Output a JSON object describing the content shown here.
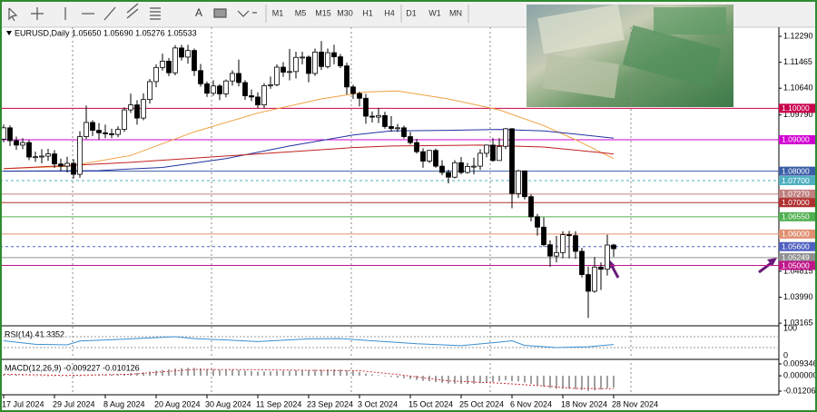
{
  "toolbar": {
    "text_tool": "A",
    "timeframes": [
      "M1",
      "M5",
      "M15",
      "M30",
      "H1",
      "H4",
      "D1",
      "W1",
      "MN"
    ]
  },
  "chart_data": {
    "type": "candlestick",
    "title": "EURUSD,Daily  1.05650 1.05690 1.05276 1.05533",
    "categories": [
      "17 Jul 2024",
      null,
      null,
      null,
      null,
      null,
      null,
      null,
      "29 Jul 2024",
      null,
      null,
      null,
      null,
      null,
      null,
      null,
      "8 Aug 2024",
      null,
      null,
      null,
      null,
      null,
      null,
      null,
      "20 Aug 2024",
      null,
      null,
      null,
      null,
      null,
      null,
      null,
      "30 Aug 2024",
      null,
      null,
      null,
      null,
      null,
      null,
      null,
      "11 Sep 2024",
      null,
      null,
      null,
      null,
      null,
      null,
      null,
      "23 Sep 2024",
      null,
      null,
      null,
      null,
      null,
      null,
      null,
      "3 Oct 2024",
      null,
      null,
      null,
      null,
      null,
      null,
      null,
      "15 Oct 2024",
      null,
      null,
      null,
      null,
      null,
      null,
      null,
      "25 Oct 2024",
      null,
      null,
      null,
      null,
      null,
      null,
      null,
      "6 Nov 2024",
      null,
      null,
      null,
      null,
      null,
      null,
      null,
      "18 Nov 2024",
      null,
      null,
      null,
      null,
      null,
      null,
      null,
      "28 Nov 2024"
    ],
    "ohlc": [
      [
        1.0902,
        1.0948,
        1.0892,
        1.0938
      ],
      [
        1.0938,
        1.0946,
        1.088,
        1.0897
      ],
      [
        1.0897,
        1.091,
        1.0868,
        1.0883
      ],
      [
        1.0883,
        1.0905,
        1.087,
        1.0891
      ],
      [
        1.0891,
        1.0899,
        1.0835,
        1.0845
      ],
      [
        1.0845,
        1.0862,
        1.083,
        1.0846
      ],
      [
        1.0846,
        1.087,
        1.0825,
        1.0848
      ],
      [
        1.0848,
        1.0871,
        1.0833,
        1.0855
      ],
      [
        1.0855,
        1.0867,
        1.0811,
        1.0823
      ],
      [
        1.0823,
        1.084,
        1.0801,
        1.0816
      ],
      [
        1.0816,
        1.0846,
        1.0796,
        1.0825
      ],
      [
        1.0825,
        1.0838,
        1.0777,
        1.079
      ],
      [
        1.079,
        1.0927,
        1.0779,
        1.091
      ],
      [
        1.091,
        1.1009,
        1.0902,
        1.0955
      ],
      [
        1.0955,
        1.0962,
        1.0912,
        1.093
      ],
      [
        1.093,
        1.0953,
        1.09,
        1.0922
      ],
      [
        1.0922,
        1.0948,
        1.0905,
        1.0919
      ],
      [
        1.0919,
        1.0935,
        1.0905,
        1.0917
      ],
      [
        1.0917,
        1.0943,
        1.0908,
        1.0933
      ],
      [
        1.0933,
        1.1003,
        1.0925,
        1.0995
      ],
      [
        1.0995,
        1.1047,
        1.0985,
        1.1011
      ],
      [
        1.1011,
        1.1026,
        1.0948,
        1.0969
      ],
      [
        1.0969,
        1.1048,
        1.0962,
        1.1028
      ],
      [
        1.1028,
        1.1093,
        1.1015,
        1.1085
      ],
      [
        1.1085,
        1.114,
        1.1067,
        1.113
      ],
      [
        1.113,
        1.1174,
        1.112,
        1.115
      ],
      [
        1.115,
        1.116,
        1.1102,
        1.1113
      ],
      [
        1.1113,
        1.1201,
        1.1105,
        1.1192
      ],
      [
        1.1192,
        1.1202,
        1.1152,
        1.1163
      ],
      [
        1.1163,
        1.1202,
        1.1142,
        1.1184
      ],
      [
        1.1184,
        1.119,
        1.1103,
        1.112
      ],
      [
        1.112,
        1.1141,
        1.1069,
        1.1078
      ],
      [
        1.1078,
        1.1085,
        1.1036,
        1.1048
      ],
      [
        1.1048,
        1.1089,
        1.104,
        1.1071
      ],
      [
        1.1071,
        1.1077,
        1.1026,
        1.1046
      ],
      [
        1.1046,
        1.1092,
        1.1035,
        1.1087
      ],
      [
        1.1087,
        1.1121,
        1.1072,
        1.1111
      ],
      [
        1.1111,
        1.1155,
        1.107,
        1.1082
      ],
      [
        1.1082,
        1.109,
        1.1027,
        1.104
      ],
      [
        1.104,
        1.106,
        1.1023,
        1.1036
      ],
      [
        1.1036,
        1.1051,
        1.1001,
        1.1011
      ],
      [
        1.1011,
        1.108,
        1.1001,
        1.1072
      ],
      [
        1.1072,
        1.1101,
        1.1062,
        1.1075
      ],
      [
        1.1075,
        1.114,
        1.107,
        1.1131
      ],
      [
        1.1131,
        1.1147,
        1.11,
        1.1115
      ],
      [
        1.1115,
        1.1189,
        1.1089,
        1.1117
      ],
      [
        1.1117,
        1.118,
        1.1095,
        1.1162
      ],
      [
        1.1162,
        1.118,
        1.114,
        1.1163
      ],
      [
        1.1163,
        1.1168,
        1.1083,
        1.1111
      ],
      [
        1.1111,
        1.119,
        1.1103,
        1.1179
      ],
      [
        1.1179,
        1.1214,
        1.1122,
        1.1133
      ],
      [
        1.1133,
        1.119,
        1.1127,
        1.1177
      ],
      [
        1.1177,
        1.1202,
        1.114,
        1.1164
      ],
      [
        1.1164,
        1.1173,
        1.1128,
        1.1135
      ],
      [
        1.1135,
        1.1145,
        1.1044,
        1.1068
      ],
      [
        1.1068,
        1.1075,
        1.103,
        1.1047
      ],
      [
        1.1047,
        1.1053,
        1.1006,
        1.1032
      ],
      [
        1.1032,
        1.1046,
        1.0951,
        1.0975
      ],
      [
        1.0975,
        1.099,
        1.0955,
        1.0972
      ],
      [
        1.0972,
        1.1001,
        1.0953,
        1.0977
      ],
      [
        1.0977,
        1.0989,
        1.0935,
        1.0942
      ],
      [
        1.0942,
        1.0975,
        1.0926,
        1.0936
      ],
      [
        1.0936,
        1.095,
        1.0925,
        1.0938
      ],
      [
        1.0938,
        1.0945,
        1.0904,
        1.091
      ],
      [
        1.091,
        1.0925,
        1.0885,
        1.0891
      ],
      [
        1.0891,
        1.0903,
        1.0856,
        1.0862
      ],
      [
        1.0862,
        1.0873,
        1.0811,
        1.0832
      ],
      [
        1.0832,
        1.0868,
        1.0826,
        1.0866
      ],
      [
        1.0866,
        1.0872,
        1.0811,
        1.0816
      ],
      [
        1.0816,
        1.0835,
        1.0787,
        1.0796
      ],
      [
        1.0796,
        1.0805,
        1.0761,
        1.0781
      ],
      [
        1.0781,
        1.0835,
        1.0777,
        1.0827
      ],
      [
        1.0827,
        1.0845,
        1.079,
        1.0796
      ],
      [
        1.0796,
        1.0826,
        1.0792,
        1.0815
      ],
      [
        1.0815,
        1.0843,
        1.079,
        1.0816
      ],
      [
        1.0816,
        1.087,
        1.0804,
        1.0857
      ],
      [
        1.0857,
        1.0885,
        1.0844,
        1.0883
      ],
      [
        1.0883,
        1.0905,
        1.083,
        1.0834
      ],
      [
        1.0834,
        1.0905,
        1.0834,
        1.0879
      ],
      [
        1.0879,
        1.0937,
        1.087,
        1.0935
      ],
      [
        1.0935,
        1.0937,
        1.0682,
        1.0729
      ],
      [
        1.0729,
        1.0805,
        1.0715,
        1.0801
      ],
      [
        1.0801,
        1.0803,
        1.071,
        1.0719
      ],
      [
        1.0719,
        1.0726,
        1.064,
        1.0655
      ],
      [
        1.0655,
        1.0664,
        1.0595,
        1.0622
      ],
      [
        1.0622,
        1.0653,
        1.056,
        1.0566
      ],
      [
        1.0566,
        1.058,
        1.0496,
        1.053
      ],
      [
        1.053,
        1.0594,
        1.051,
        1.0541
      ],
      [
        1.0541,
        1.0609,
        1.0523,
        1.0598
      ],
      [
        1.0598,
        1.061,
        1.0523,
        1.0595
      ],
      [
        1.0595,
        1.0609,
        1.0521,
        1.0545
      ],
      [
        1.0545,
        1.0556,
        1.0462,
        1.0471
      ],
      [
        1.0471,
        1.0497,
        1.0333,
        1.0418
      ],
      [
        1.0418,
        1.0527,
        1.0413,
        1.0495
      ],
      [
        1.0495,
        1.051,
        1.0422,
        1.0488
      ],
      [
        1.0488,
        1.0598,
        1.0468,
        1.0565
      ],
      [
        1.0565,
        1.0569,
        1.05276,
        1.05533
      ]
    ],
    "up_color": "#ffffff",
    "down_color": "#000000",
    "ylim": [
      1.0311,
      1.1258
    ],
    "yticks": [
      {
        "value": 1.1229,
        "label": "1.12290"
      },
      1.11465,
      {
        "value": 1.1064,
        "label": "1.10640"
      },
      {
        "value": 1.0979,
        "label": "1.09790"
      },
      1.04815,
      {
        "value": 1.0399,
        "label": "1.03990"
      },
      1.03165
    ],
    "overlays": [
      {
        "color": "#f0a040",
        "x": [
          0,
          10,
          20,
          30,
          40,
          50,
          57,
          62,
          70,
          78,
          85,
          90,
          96
        ],
        "values": [
          1.0808,
          1.0815,
          1.085,
          1.0925,
          1.0985,
          1.103,
          1.1052,
          1.1055,
          1.103,
          1.0995,
          1.0945,
          1.09,
          1.084
        ]
      },
      {
        "color": "#2030a0",
        "x": [
          0,
          15,
          25,
          35,
          45,
          55,
          61,
          70,
          78,
          85,
          90,
          96
        ],
        "values": [
          1.08,
          1.0802,
          1.0812,
          1.084,
          1.088,
          1.0915,
          1.0928,
          1.093,
          1.0933,
          1.0928,
          1.0918,
          1.0905
        ]
      },
      {
        "color": "#c02020",
        "x": [
          0,
          20,
          40,
          55,
          61,
          75,
          85,
          96
        ],
        "values": [
          1.0808,
          1.0828,
          1.0855,
          1.0875,
          1.088,
          1.0883,
          1.0877,
          1.0855
        ]
      }
    ],
    "levels": [
      {
        "value": 1.1,
        "label": "1.10000",
        "color": "#c8004c"
      },
      {
        "value": 1.09,
        "label": "1.09000",
        "color": "#d000d0"
      },
      {
        "value": 1.08,
        "label": "1.08000",
        "color": "#3a5ea8"
      },
      {
        "value": 1.077,
        "label": "1.07700",
        "color": "#50b0c0",
        "dashed": true
      },
      {
        "value": 1.0727,
        "label": "1.07270",
        "color": "#c08080"
      },
      {
        "value": 1.07,
        "label": "1.07000",
        "color": "#b03030"
      },
      {
        "value": 1.0655,
        "label": "1.06550",
        "color": "#50b050"
      },
      {
        "value": 1.06,
        "label": "1.06000",
        "color": "#e09070"
      },
      {
        "value": 1.056,
        "label": "1.05600",
        "color": "#5060c0",
        "dashed": true
      },
      {
        "value": 1.05249,
        "label": "1.05249",
        "color": "#909090"
      },
      {
        "value": 1.05,
        "label": "1.05000",
        "color": "#c0158a"
      }
    ],
    "rsi": {
      "title": "RSI(14) 41.3352",
      "color": "#3a8fd0",
      "ylim": [
        0,
        100
      ],
      "yticks": [
        100,
        0
      ],
      "levels": [
        70,
        30
      ],
      "x": [
        0,
        5,
        10,
        12,
        20,
        27,
        30,
        35,
        40,
        48,
        53,
        58,
        65,
        72,
        78,
        80,
        82,
        87,
        92,
        96
      ],
      "values": [
        55,
        42,
        40,
        54,
        62,
        70,
        63,
        58,
        52,
        62,
        63,
        55,
        44,
        37,
        50,
        55,
        38,
        30,
        33,
        41.3352
      ]
    },
    "macd": {
      "title": "MACD(12,26,9) -0.009227 -0.010126",
      "ylim": [
        -0.012066,
        0.009346
      ],
      "yticks": [
        0.009346,
        {
          "value": 0,
          "label": "0.000000"
        },
        -0.012066
      ],
      "histogram": [
        0.001,
        0.0009,
        0.0008,
        0.0006,
        0.0004,
        0.0002,
        0.0001,
        0.0,
        -0.0002,
        -0.0003,
        -0.0004,
        -0.0006,
        -0.0003,
        0.0002,
        0.0005,
        0.0007,
        0.0009,
        0.001,
        0.0012,
        0.0016,
        0.002,
        0.0022,
        0.0027,
        0.0033,
        0.004,
        0.0046,
        0.005,
        0.0057,
        0.006,
        0.0063,
        0.0062,
        0.0058,
        0.0053,
        0.0051,
        0.0047,
        0.0046,
        0.0047,
        0.0045,
        0.0041,
        0.0037,
        0.0032,
        0.0033,
        0.0034,
        0.0038,
        0.004,
        0.0041,
        0.0044,
        0.0046,
        0.0045,
        0.0048,
        0.0048,
        0.005,
        0.005,
        0.0049,
        0.0043,
        0.0036,
        0.0029,
        0.0019,
        0.0011,
        0.0005,
        -0.0003,
        -0.0009,
        -0.0014,
        -0.002,
        -0.0026,
        -0.0033,
        -0.004,
        -0.0043,
        -0.0049,
        -0.0055,
        -0.0061,
        -0.0062,
        -0.0064,
        -0.0064,
        -0.0063,
        -0.0058,
        -0.0052,
        -0.005,
        -0.0043,
        -0.0034,
        -0.0043,
        -0.0044,
        -0.0052,
        -0.0063,
        -0.0073,
        -0.0085,
        -0.0096,
        -0.0102,
        -0.0102,
        -0.0102,
        -0.0104,
        -0.0111,
        -0.0119,
        -0.0114,
        -0.0108,
        -0.0097,
        -0.009227
      ],
      "histogram_color": "#a0a0a0",
      "signal": {
        "color": "#d03030",
        "x": [
          0,
          10,
          20,
          30,
          40,
          50,
          56,
          62,
          70,
          78,
          85,
          90,
          96
        ],
        "values": [
          0.0012,
          0.0003,
          0.0012,
          0.005,
          0.0048,
          0.0042,
          0.004,
          0.001,
          -0.004,
          -0.0058,
          -0.008,
          -0.01,
          -0.010126
        ]
      }
    }
  }
}
